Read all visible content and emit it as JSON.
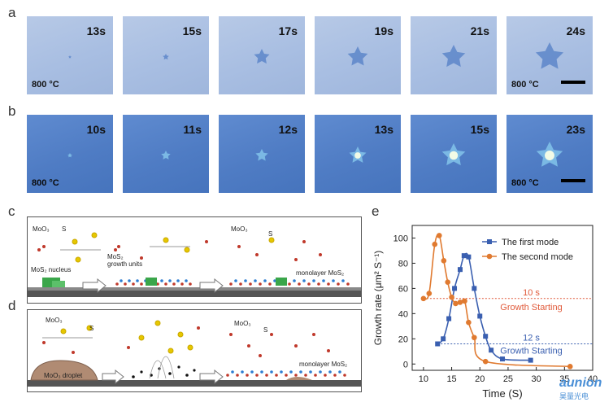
{
  "panels": {
    "a": {
      "label": "a",
      "frames": [
        {
          "time": "13s",
          "temp": "800 °C",
          "size": 2
        },
        {
          "time": "15s",
          "temp": "",
          "size": 4
        },
        {
          "time": "17s",
          "temp": "",
          "size": 10
        },
        {
          "time": "19s",
          "temp": "",
          "size": 13
        },
        {
          "time": "21s",
          "temp": "",
          "size": 15
        },
        {
          "time": "24s",
          "temp": "800 °C",
          "size": 18
        }
      ]
    },
    "b": {
      "label": "b",
      "frames": [
        {
          "time": "10s",
          "temp": "800 °C",
          "size": 3
        },
        {
          "time": "11s",
          "temp": "",
          "size": 6
        },
        {
          "time": "12s",
          "temp": "",
          "size": 8
        },
        {
          "time": "13s",
          "temp": "",
          "size": 11
        },
        {
          "time": "15s",
          "temp": "",
          "size": 15
        },
        {
          "time": "23s",
          "temp": "800 °C",
          "size": 17
        }
      ]
    },
    "c": {
      "label": "c",
      "texts": {
        "moo3_1": "MoO₃",
        "s_1": "S",
        "nucleus": "MoS₂ nucleus",
        "growth_units": "MoS₂\ngrowth units",
        "moo3_2": "MoO₃",
        "s_2": "S",
        "monolayer": "monolayer MoS₂"
      }
    },
    "d": {
      "label": "d",
      "texts": {
        "moo3_1": "MoO₃",
        "s_1": "S",
        "droplet": "MoO₃ droplet",
        "moo3_2": "MoO₃",
        "s_2": "S",
        "monolayer": "monolayer MoS₂"
      }
    },
    "e": {
      "label": "e"
    }
  },
  "chart_data": {
    "type": "line",
    "xlabel": "Time (S)",
    "ylabel": "Growth rate (μm² S⁻¹)",
    "xlim": [
      8,
      40
    ],
    "ylim": [
      -5,
      110
    ],
    "xticks": [
      10,
      15,
      20,
      25,
      30,
      35,
      40
    ],
    "yticks": [
      0,
      20,
      40,
      60,
      80,
      100
    ],
    "legend_position": "top-right",
    "series": [
      {
        "name": "The first mode",
        "color": "#3a5fb0",
        "marker": "square",
        "x": [
          12.5,
          13.5,
          14.5,
          15.5,
          16.5,
          17.2,
          18,
          19,
          20,
          21,
          22,
          24,
          29
        ],
        "y": [
          16,
          20,
          36,
          60,
          75,
          86,
          85,
          60,
          38,
          22,
          11,
          4,
          3
        ]
      },
      {
        "name": "The second mode",
        "color": "#e07a30",
        "marker": "circle",
        "x": [
          10,
          11,
          12,
          12.8,
          13.6,
          14.3,
          15,
          15.7,
          16.5,
          17.3,
          18,
          19,
          21,
          36
        ],
        "y": [
          52,
          56,
          95,
          102,
          82,
          65,
          53,
          48,
          49,
          50,
          33,
          21,
          2,
          -2
        ]
      }
    ],
    "annotations": [
      {
        "text": "10 s",
        "text2": "Growth Starting",
        "x": 10,
        "y": 52,
        "color": "#e05a3a"
      },
      {
        "text": "12 s",
        "text2": "Growth Starting",
        "x": 12.5,
        "y": 16,
        "color": "#3a5fb0"
      }
    ]
  },
  "watermark": {
    "brand": "aunion",
    "cn": "昊量光电"
  }
}
